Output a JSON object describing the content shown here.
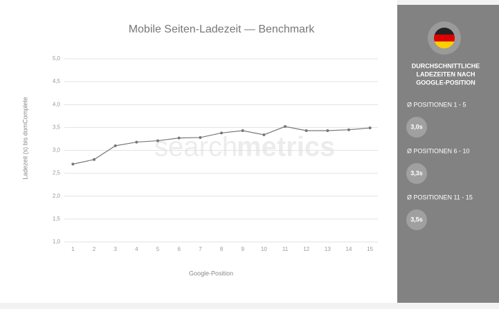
{
  "chart_data": {
    "type": "line",
    "title": "Mobile Seiten-Ladezeit — Benchmark",
    "x_label": "Google-Position",
    "y_label": "Ladezeit (s) bis domComplete",
    "x": [
      1,
      2,
      3,
      4,
      5,
      6,
      7,
      8,
      9,
      10,
      11,
      12,
      13,
      14,
      15
    ],
    "series": [
      {
        "name": "Ladezeit",
        "color": "#777777",
        "values": [
          2.7,
          2.8,
          3.1,
          3.18,
          3.21,
          3.27,
          3.28,
          3.38,
          3.43,
          3.34,
          3.52,
          3.43,
          3.43,
          3.45,
          3.49
        ]
      }
    ],
    "xlim": [
      0.5,
      15.5
    ],
    "xticks": [
      1,
      2,
      3,
      4,
      5,
      6,
      7,
      8,
      9,
      10,
      11,
      12,
      13,
      14,
      15
    ],
    "ylim": [
      1.0,
      5.0
    ],
    "yticks": [
      {
        "value": 1.0,
        "label": "1,0"
      },
      {
        "value": 1.5,
        "label": "1,5"
      },
      {
        "value": 2.0,
        "label": "2,0"
      },
      {
        "value": 2.5,
        "label": "2,5"
      },
      {
        "value": 3.0,
        "label": "3,0"
      },
      {
        "value": 3.5,
        "label": "3,5"
      },
      {
        "value": 4.0,
        "label": "4,0"
      },
      {
        "value": 4.5,
        "label": "4,5"
      },
      {
        "value": 5.0,
        "label": "5,0"
      }
    ],
    "grid": true,
    "watermark": [
      "search",
      "metrics"
    ]
  },
  "sidebar": {
    "heading": [
      "DURCHSCHNITTLICHE",
      "LADEZEITEN NACH",
      "GOOGLE-POSITION"
    ],
    "items": [
      {
        "label": "Ø POSITIONEN 1 - 5",
        "value": "3,0s"
      },
      {
        "label": "Ø POSITIONEN 6 - 10",
        "value": "3,3s"
      },
      {
        "label": "Ø POSITIONEN 11 - 15",
        "value": "3,5s"
      }
    ]
  }
}
